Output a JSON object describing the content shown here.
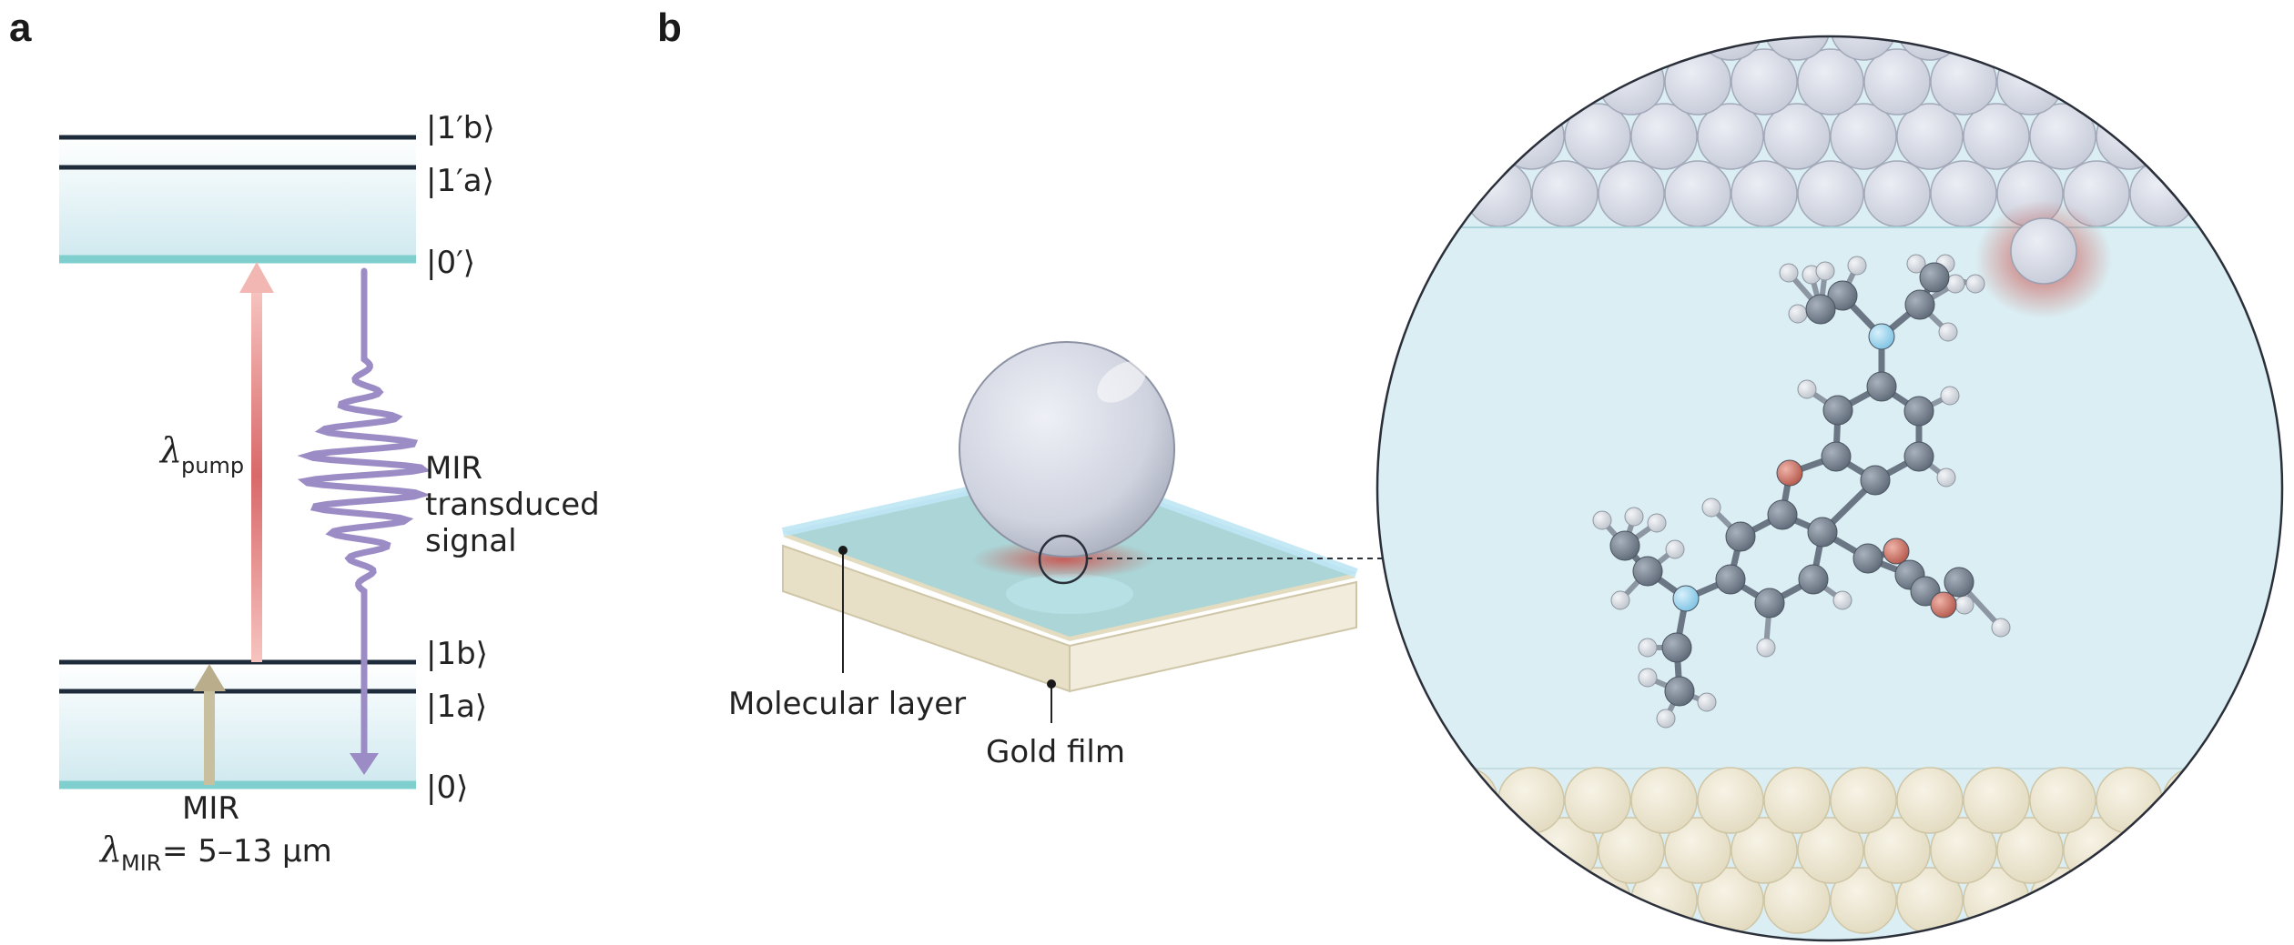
{
  "panel_a": {
    "letter": "a",
    "excited_levels": {
      "top": "|1′b⟩",
      "mid": "|1′a⟩",
      "base": "|0′⟩"
    },
    "ground_levels": {
      "top": "|1b⟩",
      "mid": "|1a⟩",
      "base": "|0⟩"
    },
    "pump_symbol": "λ",
    "pump_subscript": "pump",
    "signal_label_lines": [
      "MIR",
      "transduced",
      "signal"
    ],
    "mir_label": "MIR",
    "mir_lambda_symbol": "λ",
    "mir_lambda_subscript": "MIR",
    "mir_lambda_value": " = 5–13 µm"
  },
  "panel_b": {
    "letter": "b",
    "molecular_layer_label": "Molecular layer",
    "gold_film_label": "Gold film"
  },
  "colors": {
    "level_line": "#1d2b3a",
    "band_fill": "#d7eef2",
    "base_line": "#7fcfcf",
    "pump_arrow": "#f3b7b3",
    "pump_arrow_center": "#d9696a",
    "signal_arrow": "#9c8cc6",
    "mir_arrow": "#b9ad8c",
    "inset_bg": "#daeef3",
    "top_atoms": "#d4d8e3",
    "bottom_atoms": "#ece6d2",
    "carbon": "#7a8593",
    "hydrogen": "#d6dbe1",
    "nitrogen": "#a8d8ef",
    "oxygen": "#d08377",
    "hotspot": "#d4706a"
  }
}
